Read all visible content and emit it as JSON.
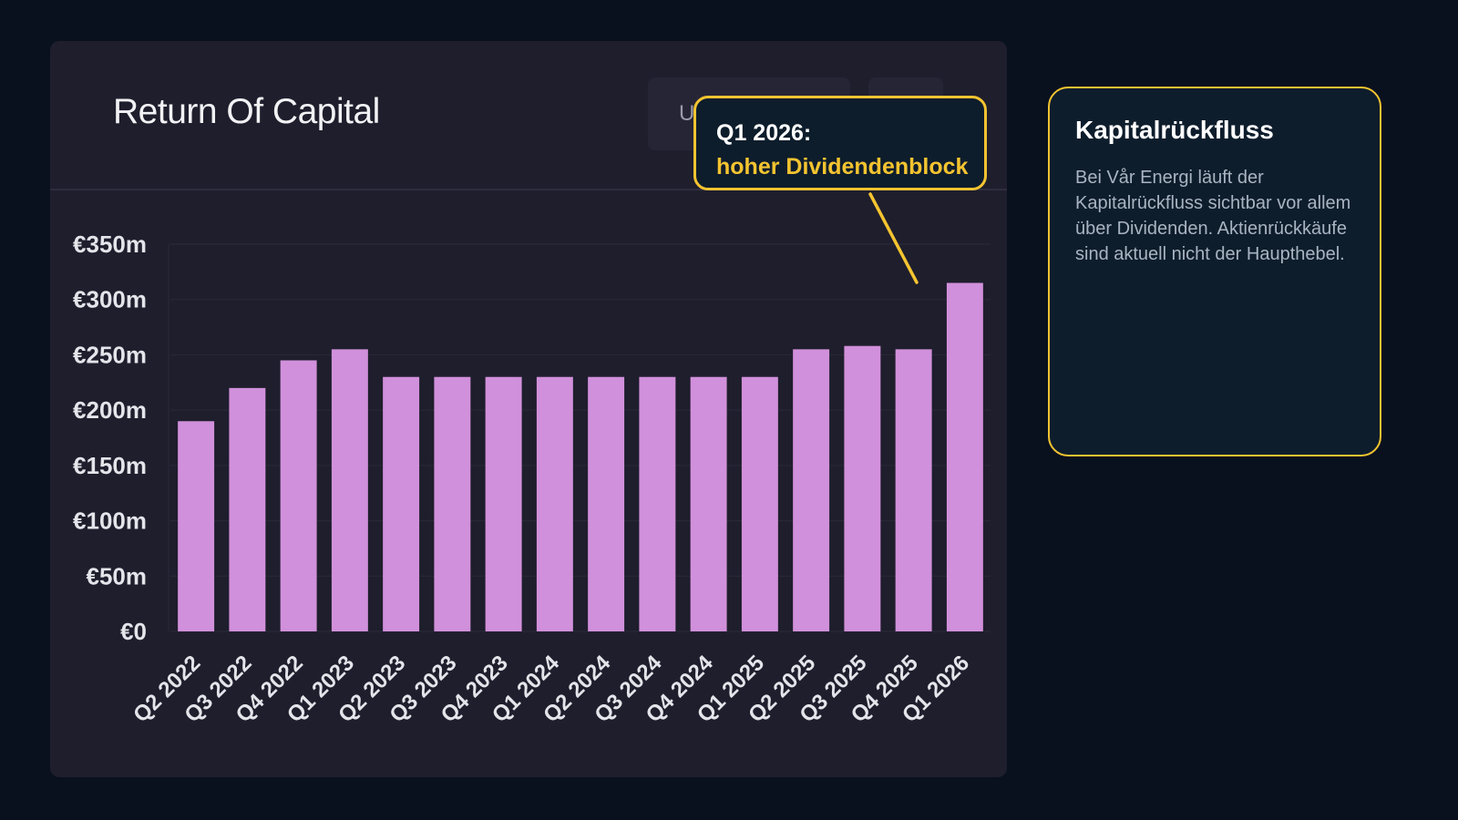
{
  "card": {
    "title": "Return Of Capital",
    "button_label": "U"
  },
  "callout": {
    "line1": "Q1 2026:",
    "line2": "hoher Dividendenblock"
  },
  "info_box": {
    "title": "Kapitalrückfluss",
    "text": "Bei Vår Energi läuft der Kapitalrückfluss sichtbar vor allem über Dividenden. Aktienrückkäufe sind aktuell nicht der Haupthebel."
  },
  "colors": {
    "bar": "#d190db",
    "accent": "#f4c430",
    "background": "#09111f",
    "card": "#1f1e2d"
  },
  "chart_data": {
    "type": "bar",
    "title": "Return Of Capital",
    "categories": [
      "Q2 2022",
      "Q3 2022",
      "Q4 2022",
      "Q1 2023",
      "Q2 2023",
      "Q3 2023",
      "Q4 2023",
      "Q1 2024",
      "Q2 2024",
      "Q3 2024",
      "Q4 2024",
      "Q1 2025",
      "Q2 2025",
      "Q3 2025",
      "Q4 2025",
      "Q1 2026"
    ],
    "values": [
      190,
      220,
      245,
      255,
      230,
      230,
      230,
      230,
      230,
      230,
      230,
      230,
      255,
      258,
      255,
      315
    ],
    "ylim": [
      0,
      350
    ],
    "y_ticks": [
      0,
      50,
      100,
      150,
      200,
      250,
      300,
      350
    ],
    "y_tick_labels": [
      "€0",
      "€50m",
      "€100m",
      "€150m",
      "€200m",
      "€250m",
      "€300m",
      "€350m"
    ],
    "grid": true,
    "legend": "none"
  }
}
